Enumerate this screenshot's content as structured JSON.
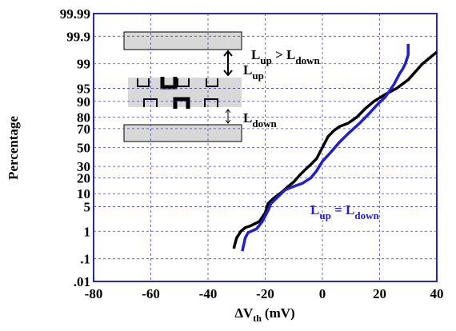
{
  "chart_data": {
    "type": "line",
    "yscale": "probit",
    "grid": true,
    "ylabel": "Percentage",
    "xlabel": {
      "main": "ΔV",
      "sub": "th",
      "unit": "(mV)"
    },
    "xlim": [
      -80,
      40
    ],
    "xticks": [
      -80,
      -60,
      -40,
      -20,
      0,
      20,
      40
    ],
    "ylim": [
      0.01,
      99.99
    ],
    "yticks": [
      {
        "value": 0.01,
        "label": ".01"
      },
      {
        "value": 0.1,
        "label": ".1"
      },
      1,
      5,
      10,
      20,
      30,
      50,
      70,
      80,
      90,
      95,
      99,
      99.9,
      99.99
    ],
    "series": [
      {
        "color": "#000000",
        "x": [
          -31,
          -30,
          -28.5,
          -27,
          -25,
          -22,
          -20,
          -19,
          -17,
          -14,
          -12,
          -10,
          -8,
          -6,
          -4,
          -2,
          0,
          2,
          4,
          6,
          9,
          12,
          15,
          18,
          22,
          26,
          30,
          35,
          40
        ],
        "values": [
          0.25,
          0.6,
          1,
          1.3,
          1.5,
          2,
          3.5,
          6,
          8,
          11,
          14,
          17,
          22,
          27,
          32,
          38,
          50,
          62,
          68,
          72,
          75,
          80,
          86,
          90,
          93,
          95,
          97,
          99,
          99.6
        ]
      },
      {
        "color": "#1f1fd0",
        "x": [
          -28,
          -27,
          -26,
          -23,
          -21,
          -19,
          -18,
          -16,
          -13,
          -10,
          -7,
          -4,
          -2,
          0,
          3,
          6,
          9,
          13,
          16,
          19,
          22,
          25,
          27,
          28,
          29,
          30,
          30
        ],
        "values": [
          0.2,
          0.6,
          0.9,
          1.2,
          2,
          4,
          6,
          8,
          12,
          14,
          16,
          20,
          26,
          35,
          45,
          56,
          65,
          75,
          82,
          88,
          92,
          96,
          98,
          98.5,
          99,
          99.5,
          99.8
        ]
      }
    ],
    "annotations": [
      {
        "color": "#000000",
        "parts": [
          {
            "text": "L"
          },
          {
            "text": "up",
            "sub": true
          }
        ]
      },
      {
        "color": "#000000",
        "parts": [
          {
            "text": "L"
          },
          {
            "text": "up",
            "sub": true
          },
          {
            "text": " > "
          },
          {
            "text": "L"
          },
          {
            "text": "down",
            "sub": true
          }
        ]
      },
      {
        "color": "#000000",
        "parts": [
          {
            "text": "L"
          },
          {
            "text": "down",
            "sub": true
          }
        ]
      },
      {
        "color": "#1f1fd0",
        "parts": [
          {
            "text": "L"
          },
          {
            "text": "up",
            "sub": true
          },
          {
            "text": " = "
          },
          {
            "text": "L"
          },
          {
            "text": "down",
            "sub": true
          }
        ]
      }
    ]
  }
}
